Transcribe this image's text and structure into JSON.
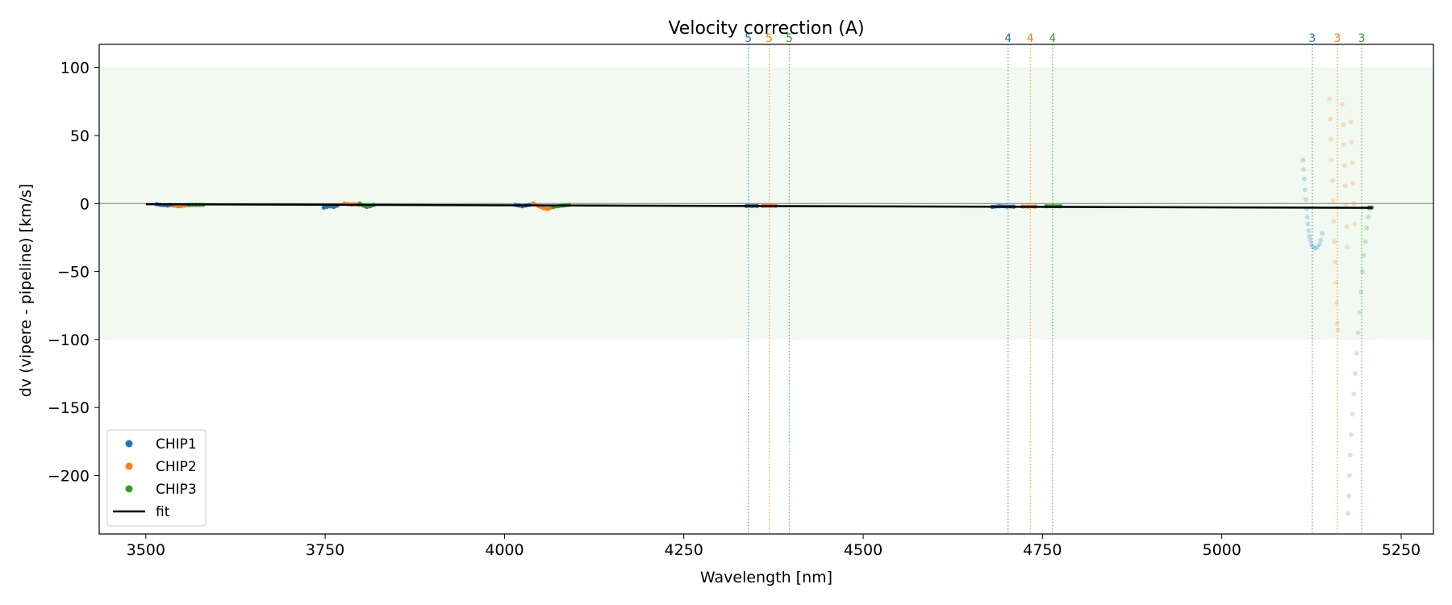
{
  "chart_data": {
    "type": "scatter",
    "title": "Velocity correction (A)",
    "xlabel": "Wavelength [nm]",
    "ylabel": "dv (vipere - pipeline) [km/s]",
    "xlim": [
      3435,
      5295
    ],
    "ylim": [
      -243,
      117
    ],
    "xticks": [
      3500,
      3750,
      4000,
      4250,
      4500,
      4750,
      5000,
      5250
    ],
    "yticks": [
      100,
      50,
      0,
      -50,
      -100,
      -150,
      -200
    ],
    "xtick_labels": [
      "3500",
      "3750",
      "4000",
      "4250",
      "4500",
      "4750",
      "5000",
      "5250"
    ],
    "ytick_labels": [
      "100",
      "50",
      "0",
      "−50",
      "−100",
      "−150",
      "−200"
    ],
    "shaded_band": [
      -100,
      100
    ],
    "zero_line": 0,
    "legend_position": "lower-left",
    "colors": {
      "chip1": "#1f77b4",
      "chip2": "#ff7f0e",
      "chip3": "#2ca02c",
      "fit": "#000000",
      "band": "#e8f5e8"
    },
    "order_markers": [
      {
        "x": 4340,
        "label": "5",
        "chip": "chip1"
      },
      {
        "x": 4369,
        "label": "5",
        "chip": "chip2"
      },
      {
        "x": 4397,
        "label": "5",
        "chip": "chip3"
      },
      {
        "x": 4702,
        "label": "4",
        "chip": "chip1"
      },
      {
        "x": 4733,
        "label": "4",
        "chip": "chip2"
      },
      {
        "x": 4764,
        "label": "4",
        "chip": "chip3"
      },
      {
        "x": 5126,
        "label": "3",
        "chip": "chip1"
      },
      {
        "x": 5161,
        "label": "3",
        "chip": "chip2"
      },
      {
        "x": 5195,
        "label": "3",
        "chip": "chip3"
      }
    ],
    "series": [
      {
        "name": "CHIP1",
        "chip": "chip1",
        "segments": [
          {
            "x": [
              3515,
              3520,
              3525,
              3530,
              3535,
              3540
            ],
            "y": [
              -0.5,
              -1,
              -1.2,
              -1.5,
              -1,
              -1.5
            ]
          },
          {
            "x": [
              3748,
              3752,
              3757,
              3762,
              3767
            ],
            "y": [
              -3,
              -2.5,
              -2,
              -2.5,
              -1.5
            ]
          },
          {
            "x": [
              4015,
              4020,
              4025,
              4030,
              4035
            ],
            "y": [
              -1,
              -1.5,
              -2,
              -1.5,
              -1
            ]
          },
          {
            "x": [
              4337,
              4345,
              4352
            ],
            "y": [
              -1.8,
              -1.8,
              -1.8
            ]
          },
          {
            "x": [
              4680,
              4690,
              4700,
              4710
            ],
            "y": [
              -2.5,
              -2,
              -2.2,
              -2.3
            ]
          }
        ],
        "faint": {
          "x": [
            5113,
            5114,
            5115,
            5116,
            5117,
            5118,
            5119,
            5120,
            5121,
            5122,
            5123,
            5125,
            5127,
            5130,
            5133,
            5136,
            5138,
            5140
          ],
          "y": [
            32,
            25,
            18,
            10,
            3,
            -4,
            -10,
            -15,
            -20,
            -24,
            -27,
            -30,
            -32,
            -33,
            -32,
            -30,
            -27,
            -22
          ]
        }
      },
      {
        "name": "CHIP2",
        "chip": "chip2",
        "segments": [
          {
            "x": [
              3540,
              3545,
              3550,
              3555,
              3560
            ],
            "y": [
              -1.5,
              -2,
              -1.8,
              -1.5,
              -1.2
            ]
          },
          {
            "x": [
              3777,
              3782,
              3787,
              3792,
              3797
            ],
            "y": [
              0,
              -0.5,
              -0.8,
              -0.5,
              -1
            ]
          },
          {
            "x": [
              4040,
              4048,
              4055,
              4060,
              4068
            ],
            "y": [
              0,
              -2,
              -3.5,
              -4,
              -2.5
            ]
          },
          {
            "x": [
              4360,
              4370,
              4378
            ],
            "y": [
              -1.8,
              -1.8,
              -1.8
            ]
          },
          {
            "x": [
              4722,
              4730,
              4740
            ],
            "y": [
              -2.2,
              -2.2,
              -2.2
            ]
          }
        ],
        "faint": {
          "x": [
            5150,
            5151,
            5152,
            5153,
            5154,
            5155,
            5156,
            5157,
            5158,
            5159,
            5160,
            5161,
            5162,
            5168,
            5169,
            5170,
            5171,
            5172,
            5173,
            5174,
            5175,
            5180,
            5181,
            5182,
            5183,
            5184,
            5185
          ],
          "y": [
            77,
            62,
            47,
            32,
            17,
            2,
            -13,
            -28,
            -43,
            -58,
            -73,
            -88,
            -93,
            73,
            58,
            43,
            28,
            13,
            -2,
            -17,
            -32,
            60,
            45,
            30,
            15,
            0,
            -15
          ]
        }
      },
      {
        "name": "CHIP3",
        "chip": "chip3",
        "segments": [
          {
            "x": [
              3560,
              3565,
              3570,
              3575,
              3580
            ],
            "y": [
              -1,
              -1,
              -1,
              -1,
              -1
            ]
          },
          {
            "x": [
              3798,
              3803,
              3808,
              3813,
              3818
            ],
            "y": [
              0,
              -1.5,
              -2.5,
              -2,
              -1
            ]
          },
          {
            "x": [
              4068,
              4075,
              4082,
              4090
            ],
            "y": [
              -2.5,
              -2,
              -1.5,
              -1
            ]
          },
          {
            "x": [
              4755,
              4765,
              4775
            ],
            "y": [
              -2,
              -2,
              -2
            ]
          },
          {
            "x": [
              5205,
              5209
            ],
            "y": [
              -3,
              -3
            ]
          }
        ],
        "faint": {
          "x": [
            5176,
            5177,
            5178,
            5179,
            5180,
            5182,
            5184,
            5186,
            5188,
            5190,
            5192,
            5194,
            5196,
            5198,
            5200,
            5202,
            5204,
            5206
          ],
          "y": [
            -228,
            -215,
            -200,
            -185,
            -170,
            -155,
            -140,
            -125,
            -110,
            -95,
            -80,
            -65,
            -50,
            -38,
            -28,
            -18,
            -10,
            -4
          ]
        }
      }
    ],
    "fit": {
      "x": [
        3500,
        5210
      ],
      "y": [
        -0.5,
        -3.2
      ]
    },
    "legend": [
      {
        "label": "CHIP1",
        "chip": "chip1",
        "kind": "marker"
      },
      {
        "label": "CHIP2",
        "chip": "chip2",
        "kind": "marker"
      },
      {
        "label": "CHIP3",
        "chip": "chip3",
        "kind": "marker"
      },
      {
        "label": "fit",
        "chip": "fit",
        "kind": "line"
      }
    ]
  }
}
